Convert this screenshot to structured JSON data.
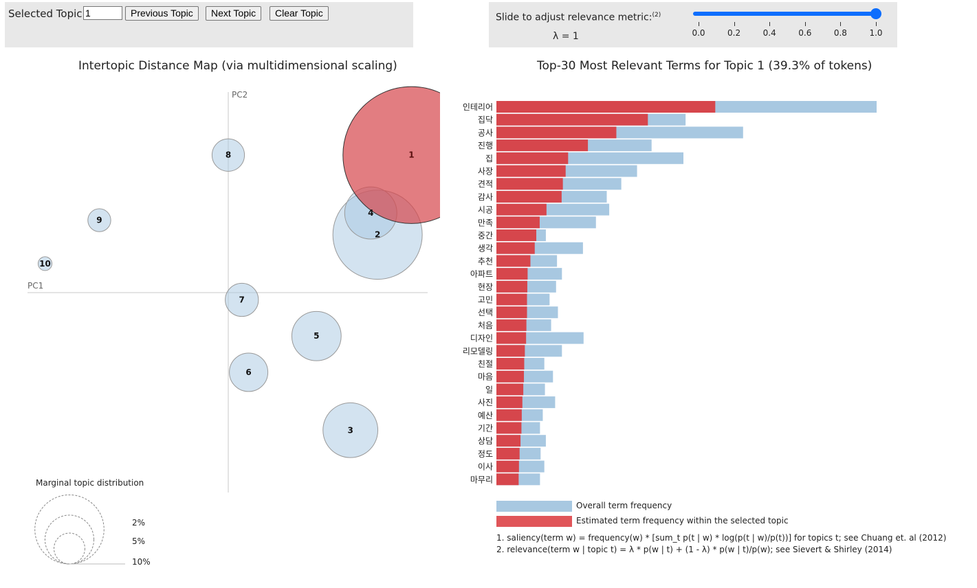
{
  "controls": {
    "selected_topic_label": "Selected Topic:",
    "selected_topic_value": "1",
    "prev_label": "Previous Topic",
    "next_label": "Next Topic",
    "clear_label": "Clear Topic"
  },
  "slider": {
    "label": "Slide to adjust relevance metric:",
    "footnote": "(2)",
    "lambda_text": "λ = 1",
    "value": 1.0,
    "ticks": [
      "0.0",
      "0.2",
      "0.4",
      "0.6",
      "0.8",
      "1.0"
    ]
  },
  "map": {
    "title": "Intertopic Distance Map (via multidimensional scaling)",
    "pc1_label": "PC1",
    "pc2_label": "PC2",
    "marginal_title": "Marginal topic distribution",
    "marginal_levels": [
      "2%",
      "5%",
      "10%"
    ]
  },
  "bars": {
    "title": "Top-30 Most Relevant Terms for Topic 1 (39.3% of tokens)"
  },
  "legend": {
    "overall": "Overall term frequency",
    "estimated": "Estimated term frequency within the selected topic",
    "note1": "1. saliency(term w) = frequency(w) * [sum_t p(t | w) * log(p(t | w)/p(t))] for topics t; see Chuang et. al (2012)",
    "note2": "2. relevance(term w | topic t) = λ * p(w | t) + (1 - λ) * p(w | t)/p(w); see Sievert & Shirley (2014)"
  },
  "colors": {
    "selected_topic": "#d6464c",
    "topic_circle": "#a8c8e1",
    "overall_bar": "#a8c8e1",
    "estimated_bar": "#d6464c",
    "slider": "#0d6efd"
  },
  "chart_data": [
    {
      "type": "scatter",
      "title": "Intertopic Distance Map (via multidimensional scaling)",
      "xlabel": "PC1",
      "ylabel": "PC2",
      "selected": "1",
      "topics": [
        {
          "id": "1",
          "pc1": 0.27,
          "pc2": 0.19,
          "share": 39.3
        },
        {
          "id": "2",
          "pc1": 0.22,
          "pc2": 0.08,
          "share": 16.7
        },
        {
          "id": "3",
          "pc1": 0.18,
          "pc2": -0.19,
          "share": 6.3
        },
        {
          "id": "4",
          "pc1": 0.21,
          "pc2": 0.11,
          "share": 5.7
        },
        {
          "id": "5",
          "pc1": 0.13,
          "pc2": -0.06,
          "share": 5.1
        },
        {
          "id": "6",
          "pc1": 0.03,
          "pc2": -0.11,
          "share": 3.1
        },
        {
          "id": "7",
          "pc1": 0.02,
          "pc2": -0.01,
          "share": 2.3
        },
        {
          "id": "8",
          "pc1": 0.0,
          "pc2": 0.19,
          "share": 2.2
        },
        {
          "id": "9",
          "pc1": -0.19,
          "pc2": 0.1,
          "share": 1.1
        },
        {
          "id": "10",
          "pc1": -0.27,
          "pc2": 0.04,
          "share": 0.4
        }
      ],
      "xlim": [
        -0.3,
        0.3
      ],
      "ylim": [
        -0.3,
        0.3
      ],
      "legend_levels": [
        2,
        5,
        10
      ]
    },
    {
      "type": "bar",
      "orientation": "horizontal",
      "title": "Top-30 Most Relevant Terms for Topic 1 (39.3% of tokens)",
      "categories": [
        "인테리어",
        "집닥",
        "공사",
        "진행",
        "집",
        "사장",
        "견적",
        "감사",
        "시공",
        "만족",
        "중간",
        "생각",
        "추천",
        "아파트",
        "현장",
        "고민",
        "선택",
        "처음",
        "디자인",
        "리모델링",
        "친절",
        "마음",
        "일",
        "사진",
        "예산",
        "기간",
        "상담",
        "정도",
        "이사",
        "마무리"
      ],
      "series": [
        {
          "name": "Overall term frequency",
          "values": [
            1230,
            612,
            798,
            502,
            605,
            455,
            404,
            357,
            365,
            322,
            160,
            280,
            196,
            212,
            193,
            172,
            199,
            177,
            282,
            212,
            155,
            183,
            157,
            190,
            150,
            141,
            160,
            143,
            155,
            141
          ]
        },
        {
          "name": "Estimated term frequency within the selected topic",
          "values": [
            708,
            490,
            388,
            296,
            232,
            224,
            215,
            211,
            162,
            140,
            129,
            124,
            110,
            101,
            100,
            99,
            99,
            97,
            96,
            92,
            90,
            89,
            87,
            84,
            82,
            81,
            78,
            75,
            73,
            72
          ]
        }
      ],
      "xlim": [
        0,
        1250
      ]
    }
  ]
}
